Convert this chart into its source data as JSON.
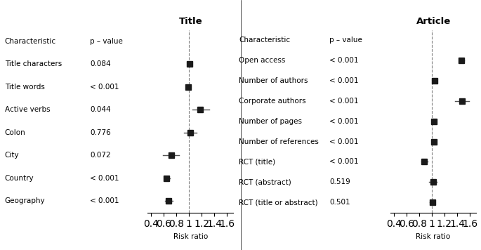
{
  "title_panel": {
    "title": "Title",
    "characteristics": [
      "Characteristic",
      "Title characters",
      "Title words",
      "Active verbs",
      "Colon",
      "City",
      "Country",
      "Geography"
    ],
    "pvalues": [
      "p – value",
      "0.084",
      "< 0.001",
      "0.044",
      "0.776",
      "0.072",
      "< 0.001",
      "< 0.001"
    ],
    "estimates": [
      null,
      1.01,
      0.99,
      1.18,
      1.02,
      0.72,
      0.65,
      0.68
    ],
    "ci_low": [
      null,
      0.99,
      0.97,
      1.05,
      0.92,
      0.59,
      0.61,
      0.62
    ],
    "ci_high": [
      null,
      1.03,
      1.01,
      1.32,
      1.12,
      0.85,
      0.7,
      0.74
    ],
    "xlim": [
      0.35,
      1.7
    ],
    "xticks": [
      0.4,
      0.6,
      0.8,
      1.0,
      1.2,
      1.4,
      1.6
    ],
    "xlabel": "Risk ratio",
    "vline": 1.0
  },
  "article_panel": {
    "title": "Article",
    "characteristics": [
      "Characteristic",
      "Open access",
      "Number of authors",
      "Corporate authors",
      "Number of pages",
      "Number of references",
      "RCT (title)",
      "RCT (abstract)",
      "RCT (title or abstract)"
    ],
    "pvalues": [
      "p – value",
      "< 0.001",
      "< 0.001",
      "< 0.001",
      "< 0.001",
      "< 0.001",
      "< 0.001",
      "0.519",
      "0.501"
    ],
    "estimates": [
      null,
      1.47,
      1.05,
      1.48,
      1.04,
      1.04,
      0.88,
      1.02,
      1.01
    ],
    "ci_low": [
      null,
      1.43,
      1.03,
      1.37,
      1.03,
      1.03,
      0.84,
      0.96,
      0.97
    ],
    "ci_high": [
      null,
      1.51,
      1.07,
      1.59,
      1.05,
      1.05,
      0.93,
      1.08,
      1.05
    ],
    "xlim": [
      0.35,
      1.7
    ],
    "xticks": [
      0.4,
      0.6,
      0.8,
      1.0,
      1.2,
      1.4,
      1.6
    ],
    "xlabel": "Risk ratio",
    "vline": 1.0
  },
  "background_color": "#ffffff",
  "marker_color": "#1a1a1a",
  "line_color": "#555555",
  "marker_size": 6,
  "font_size": 7.5,
  "title_font_size": 9.5
}
